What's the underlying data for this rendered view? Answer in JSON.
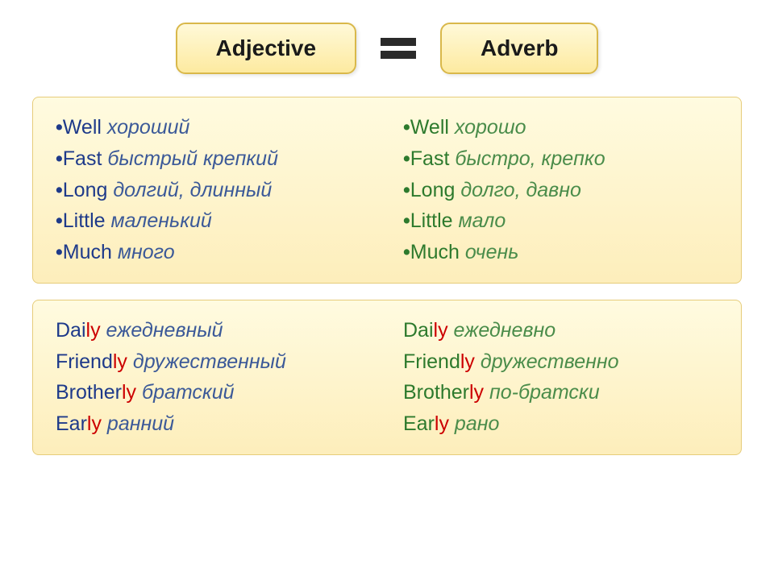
{
  "header": {
    "left": "Adjective",
    "right": "Adverb"
  },
  "main": {
    "left": [
      {
        "word": "Well",
        "translation": "хороший"
      },
      {
        "word": "Fast",
        "translation": "быстрый крепкий"
      },
      {
        "word": "Long",
        "translation": "долгий, длинный"
      },
      {
        "word": "Little",
        "translation": "маленький"
      },
      {
        "word": "Much",
        "translation": "много"
      }
    ],
    "right": [
      {
        "word": "Well",
        "translation": "хорошо"
      },
      {
        "word": "Fast",
        "translation": "быстро, крепко"
      },
      {
        "word": "Long",
        "translation": "долго, давно"
      },
      {
        "word": "Little",
        "translation": "мало"
      },
      {
        "word": "Much",
        "translation": "очень"
      }
    ]
  },
  "bottom": {
    "left": [
      {
        "stem": "Dai",
        "suffix": "ly",
        "translation": "ежедневный"
      },
      {
        "stem": "Friend",
        "suffix": "ly",
        "translation": "дружественный"
      },
      {
        "stem": "Brother",
        "suffix": "ly",
        "translation": "братский"
      },
      {
        "stem": "Ear",
        "suffix": "ly",
        "translation": "ранний"
      }
    ],
    "right": [
      {
        "stem": "Dai",
        "suffix": "ly",
        "translation": "ежедневно"
      },
      {
        "stem": "Friend",
        "suffix": "ly",
        "translation": "дружественно"
      },
      {
        "stem": "Brother",
        "suffix": "ly",
        "translation": "по-братски"
      },
      {
        "stem": "Ear",
        "suffix": "ly",
        "translation": "рано"
      }
    ]
  },
  "style": {
    "header_bg_top": "#fff9d8",
    "header_bg_bottom": "#fdeaa0",
    "header_border": "#d9b84a",
    "panel_bg_top": "#fffbe0",
    "panel_bg_bottom": "#fdeebb",
    "panel_border": "#e6cc7a",
    "blue": "#1e3a8a",
    "blue_italic": "#3b5998",
    "green": "#2d7a2d",
    "green_italic": "#4a8c4a",
    "red": "#cc0000",
    "equals_color": "#2a2a2a",
    "font_size_header": 28,
    "font_size_entry": 25
  }
}
